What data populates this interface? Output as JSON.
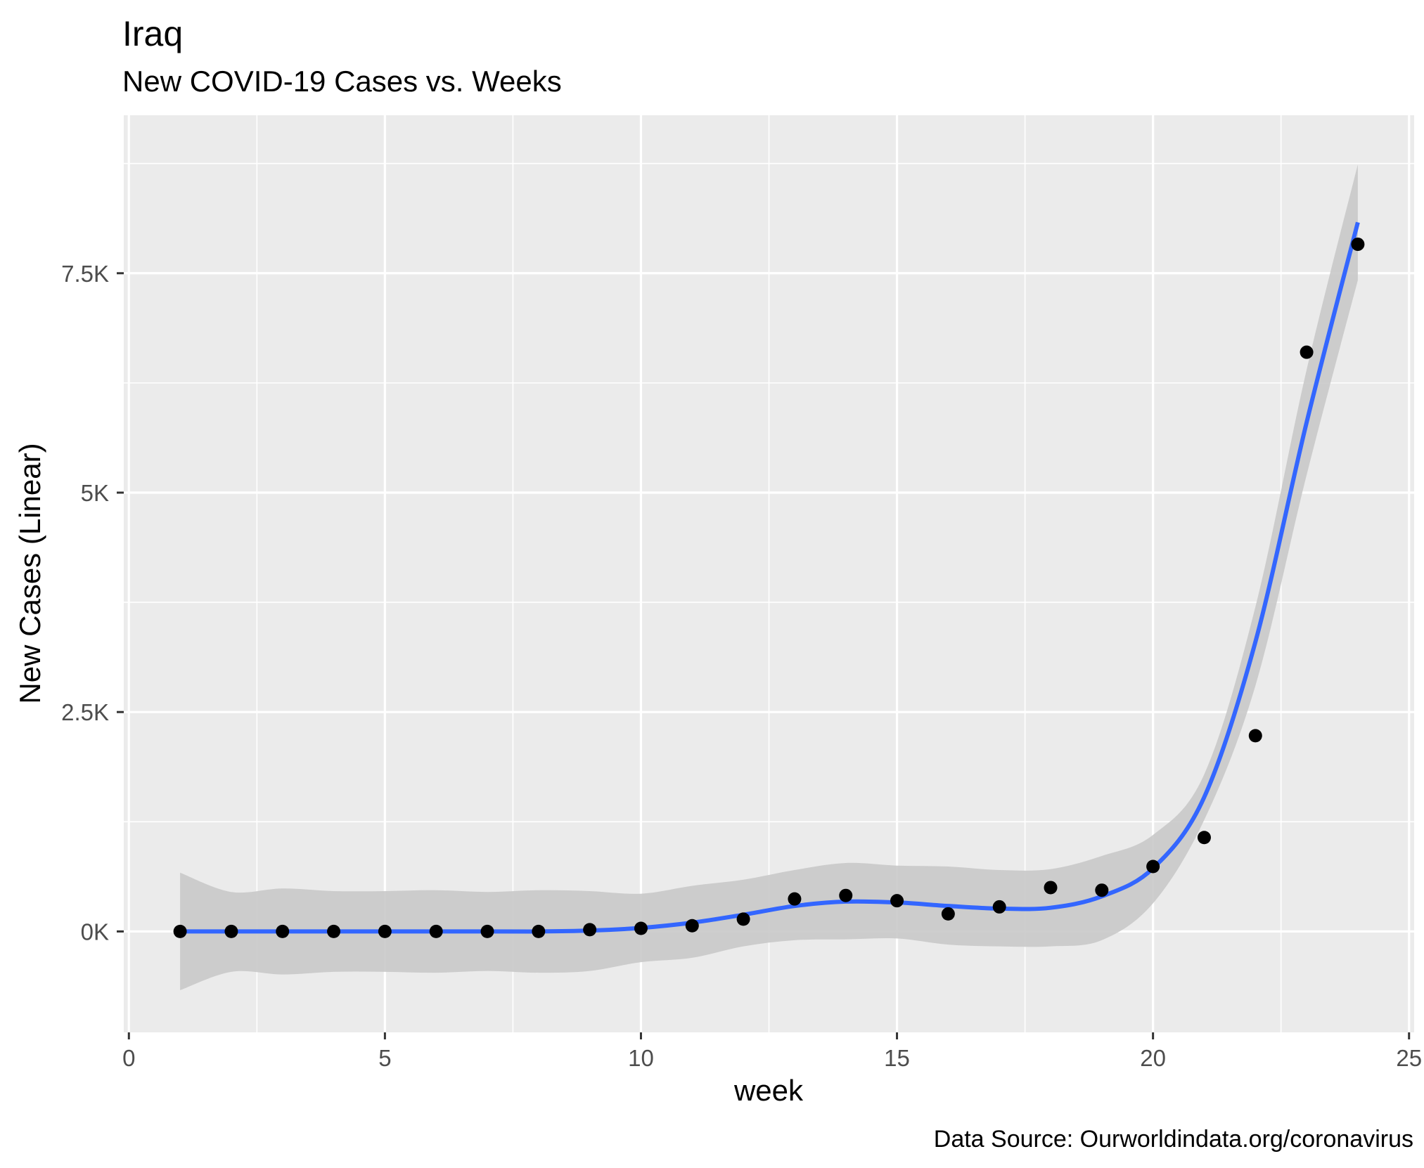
{
  "chart_data": {
    "type": "scatter",
    "title": "Iraq",
    "subtitle": "New COVID-19 Cases vs. Weeks",
    "xlabel": "week",
    "ylabel": "New Cases (Linear)",
    "caption": "Data Source: Ourworldindata.org/coronavirus",
    "xlim": [
      -0.1,
      25.1
    ],
    "ylim": [
      -1150,
      9300
    ],
    "x_ticks": [
      0,
      5,
      10,
      15,
      20,
      25
    ],
    "x_tick_labels": [
      "0",
      "5",
      "10",
      "15",
      "20",
      "25"
    ],
    "y_ticks": [
      0,
      2500,
      5000,
      7500
    ],
    "y_tick_labels": [
      "0K",
      "2.5K",
      "5K",
      "7.5K"
    ],
    "grid": true,
    "series": [
      {
        "type": "scatter",
        "x": [
          1,
          2,
          3,
          4,
          5,
          6,
          7,
          8,
          9,
          10,
          11,
          12,
          13,
          14,
          15,
          16,
          17,
          18,
          19,
          20,
          21,
          22,
          23,
          24
        ],
        "y": [
          0,
          0,
          0,
          0,
          0,
          0,
          0,
          0,
          20,
          35,
          65,
          140,
          370,
          410,
          350,
          200,
          280,
          500,
          470,
          740,
          1070,
          2230,
          6600,
          7830
        ]
      },
      {
        "type": "line",
        "x": [
          1,
          2,
          3,
          4,
          5,
          6,
          7,
          8,
          9,
          10,
          11,
          12,
          13,
          14,
          15,
          16,
          17,
          18,
          19,
          20,
          21,
          22,
          23,
          24
        ],
        "y": [
          0,
          0,
          0,
          0,
          0,
          0,
          0,
          0,
          10,
          40,
          100,
          190,
          290,
          340,
          330,
          290,
          260,
          270,
          400,
          720,
          1530,
          3300,
          5800,
          8080
        ]
      }
    ],
    "ribbon": {
      "x": [
        1,
        2,
        3,
        4,
        5,
        6,
        7,
        8,
        9,
        10,
        11,
        12,
        13,
        14,
        15,
        16,
        17,
        18,
        19,
        20,
        21,
        22,
        23,
        24
      ],
      "lower": [
        -670,
        -460,
        -490,
        -460,
        -460,
        -470,
        -450,
        -470,
        -450,
        -350,
        -300,
        -170,
        -100,
        -90,
        -80,
        -150,
        -170,
        -170,
        -100,
        320,
        1270,
        2800,
        5200,
        7420
      ],
      "upper": [
        670,
        450,
        490,
        460,
        460,
        470,
        450,
        470,
        460,
        430,
        520,
        590,
        700,
        780,
        750,
        740,
        700,
        710,
        860,
        1100,
        1790,
        3700,
        6400,
        8740
      ]
    },
    "colors": {
      "background": "#ffffff",
      "panel": "#ebebeb",
      "grid": "#ffffff",
      "point": "#000000",
      "line": "#3366ff",
      "ribbon": "#c9c9c9"
    }
  }
}
